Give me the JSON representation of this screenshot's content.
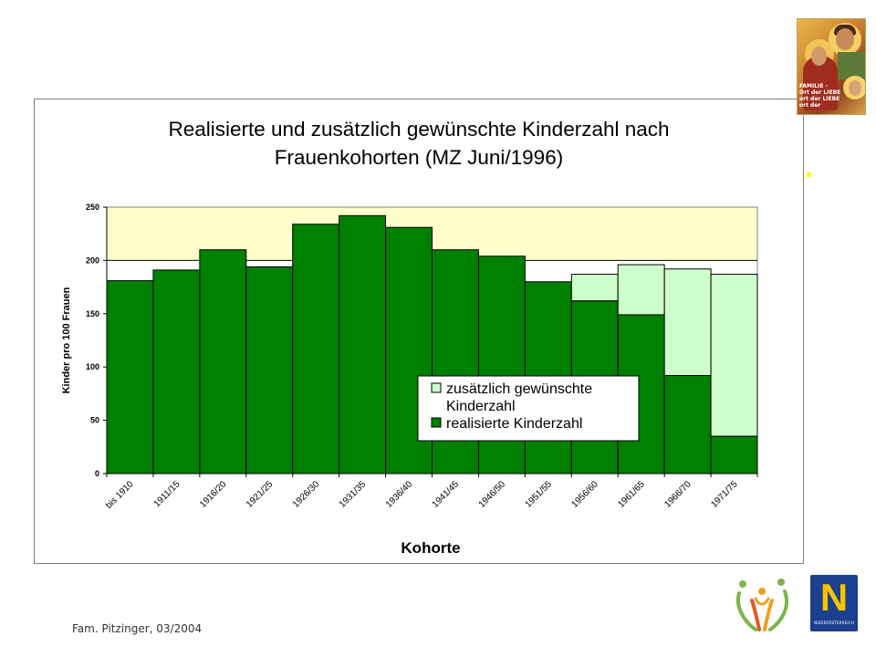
{
  "colors": {
    "realized": "#008000",
    "additional": "#ccffcc",
    "plot_background": "#ffffcc",
    "bar_border": "#000000"
  },
  "icon_image": {
    "icon": "holy-family-icon",
    "caption_lines": [
      "FAMILIE -",
      "Ort der LIEBE",
      "ort der LIEBE",
      "ort der"
    ]
  },
  "footer": {
    "credit": "Fam. Pitzinger, 03/2004"
  },
  "logos": {
    "family": "family-figures-logo",
    "noe": "noe-logo",
    "noe_letter": "N",
    "noe_caption": "NIEDERÖSTERREICH"
  },
  "chart_data": {
    "type": "bar",
    "stacked": true,
    "title_lines": [
      "Realisierte und zusätzlich gewünschte Kinderzahl nach",
      "Frauenkohorten (MZ Juni/1996)"
    ],
    "xlabel": "Kohorte",
    "ylabel": "Kinder pro 100 Frauen",
    "ylim": [
      0,
      250
    ],
    "yticks": [
      0,
      50,
      100,
      150,
      200,
      250
    ],
    "grid": false,
    "reference_line": 200,
    "categories": [
      "bis 1910",
      "1911/15",
      "1916/20",
      "1921/25",
      "1926/30",
      "1931/35",
      "1936/40",
      "1941/45",
      "1946/50",
      "1951/55",
      "1956/60",
      "1961/65",
      "1966/70",
      "1971/75"
    ],
    "series": [
      {
        "name": "realisierte Kinderzahl",
        "values": [
          181,
          191,
          210,
          194,
          234,
          242,
          231,
          210,
          204,
          180,
          162,
          149,
          92,
          35
        ]
      },
      {
        "name": "zusätzlich gewünschte Kinderzahl",
        "values": [
          0,
          0,
          0,
          0,
          0,
          0,
          0,
          0,
          0,
          0,
          25,
          47,
          100,
          152
        ]
      }
    ],
    "legend": {
      "placement": "inside-center-right",
      "entries": [
        {
          "lines": [
            "zusätzlich gewünschte",
            "Kinderzahl"
          ],
          "series_index": 1
        },
        {
          "lines": [
            "realisierte Kinderzahl"
          ],
          "series_index": 0
        }
      ]
    }
  }
}
